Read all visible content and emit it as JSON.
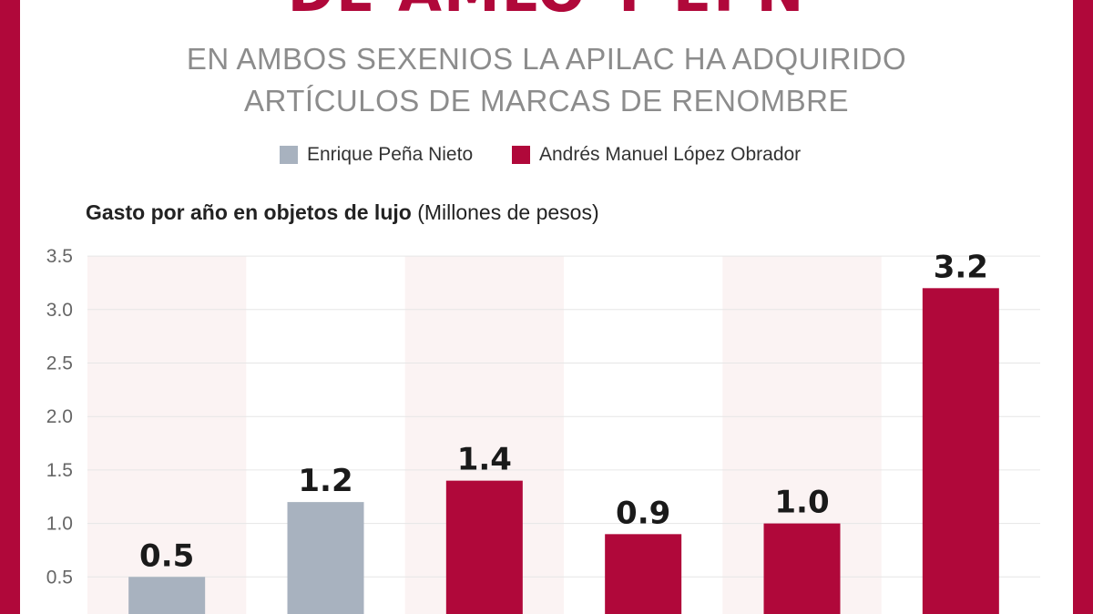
{
  "header": {
    "headline": "DE AMLO Y EPN",
    "subtitle_lines": [
      "EN AMBOS SEXENIOS LA APILAC HA ADQUIRIDO",
      "ARTÍCULOS DE MARCAS DE RENOMBRE"
    ]
  },
  "colors": {
    "frame": "#b0083a",
    "epn": "#a8b2bf",
    "amlo": "#b0083a",
    "band": "#fbf3f3",
    "grid": "#e6e6e6"
  },
  "chart_data": {
    "type": "bar",
    "title_bold": "Gasto por año en objetos de lujo",
    "title_unit": "(Millones de pesos)",
    "ylim": [
      0,
      3.5
    ],
    "yticks": [
      "0.5",
      "1.0",
      "1.5",
      "2.0",
      "2.5",
      "3.0",
      "3.5"
    ],
    "grid": true,
    "legend_position": "top-center",
    "legend": [
      {
        "name": "Enrique Peña Nieto",
        "color": "#a8b2bf"
      },
      {
        "name": "Andrés Manuel López Obrador",
        "color": "#b0083a"
      }
    ],
    "values": [
      0.5,
      1.2,
      1.4,
      0.9,
      1.0,
      3.2
    ],
    "value_labels": [
      "0.5",
      "1.2",
      "1.4",
      "0.9",
      "1.0",
      "3.2"
    ],
    "series_index": [
      0,
      0,
      1,
      1,
      1,
      1
    ]
  }
}
